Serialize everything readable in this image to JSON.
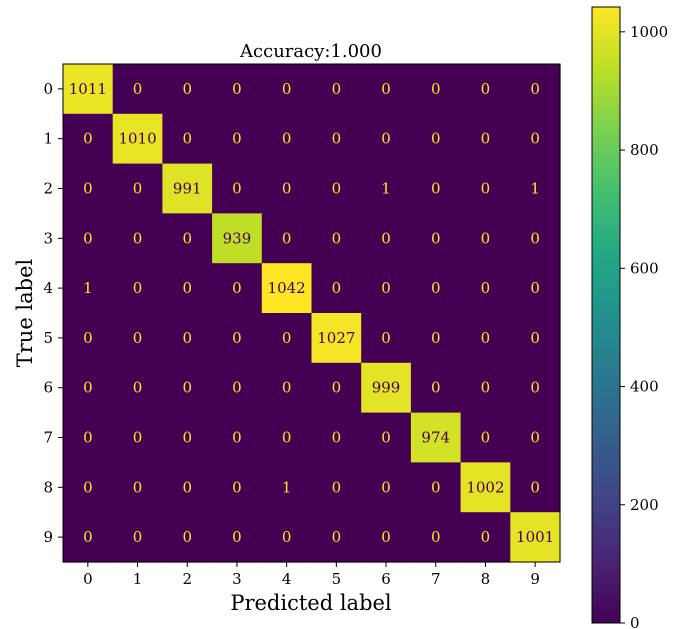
{
  "chart_data": {
    "type": "heatmap",
    "title": "Accuracy:1.000",
    "xlabel": "Predicted label",
    "ylabel": "True label",
    "x_categories": [
      "0",
      "1",
      "2",
      "3",
      "4",
      "5",
      "6",
      "7",
      "8",
      "9"
    ],
    "y_categories": [
      "0",
      "1",
      "2",
      "3",
      "4",
      "5",
      "6",
      "7",
      "8",
      "9"
    ],
    "values": [
      [
        1011,
        0,
        0,
        0,
        0,
        0,
        0,
        0,
        0,
        0
      ],
      [
        0,
        1010,
        0,
        0,
        0,
        0,
        0,
        0,
        0,
        0
      ],
      [
        0,
        0,
        991,
        0,
        0,
        0,
        1,
        0,
        0,
        1
      ],
      [
        0,
        0,
        0,
        939,
        0,
        0,
        0,
        0,
        0,
        0
      ],
      [
        1,
        0,
        0,
        0,
        1042,
        0,
        0,
        0,
        0,
        0
      ],
      [
        0,
        0,
        0,
        0,
        0,
        1027,
        0,
        0,
        0,
        0
      ],
      [
        0,
        0,
        0,
        0,
        0,
        0,
        999,
        0,
        0,
        0
      ],
      [
        0,
        0,
        0,
        0,
        0,
        0,
        0,
        974,
        0,
        0
      ],
      [
        0,
        0,
        0,
        0,
        1,
        0,
        0,
        0,
        1002,
        0
      ],
      [
        0,
        0,
        0,
        0,
        0,
        0,
        0,
        0,
        0,
        1001
      ]
    ],
    "colormap": "viridis",
    "color_range": [
      0,
      1042
    ],
    "colorbar_ticks": [
      0,
      200,
      400,
      600,
      800,
      1000
    ],
    "colorbar_tick_labels": [
      "0",
      "200",
      "400",
      "600",
      "800",
      "1000"
    ],
    "text_color_low": "#fde725",
    "text_color_high": "#440154",
    "grid": false
  }
}
